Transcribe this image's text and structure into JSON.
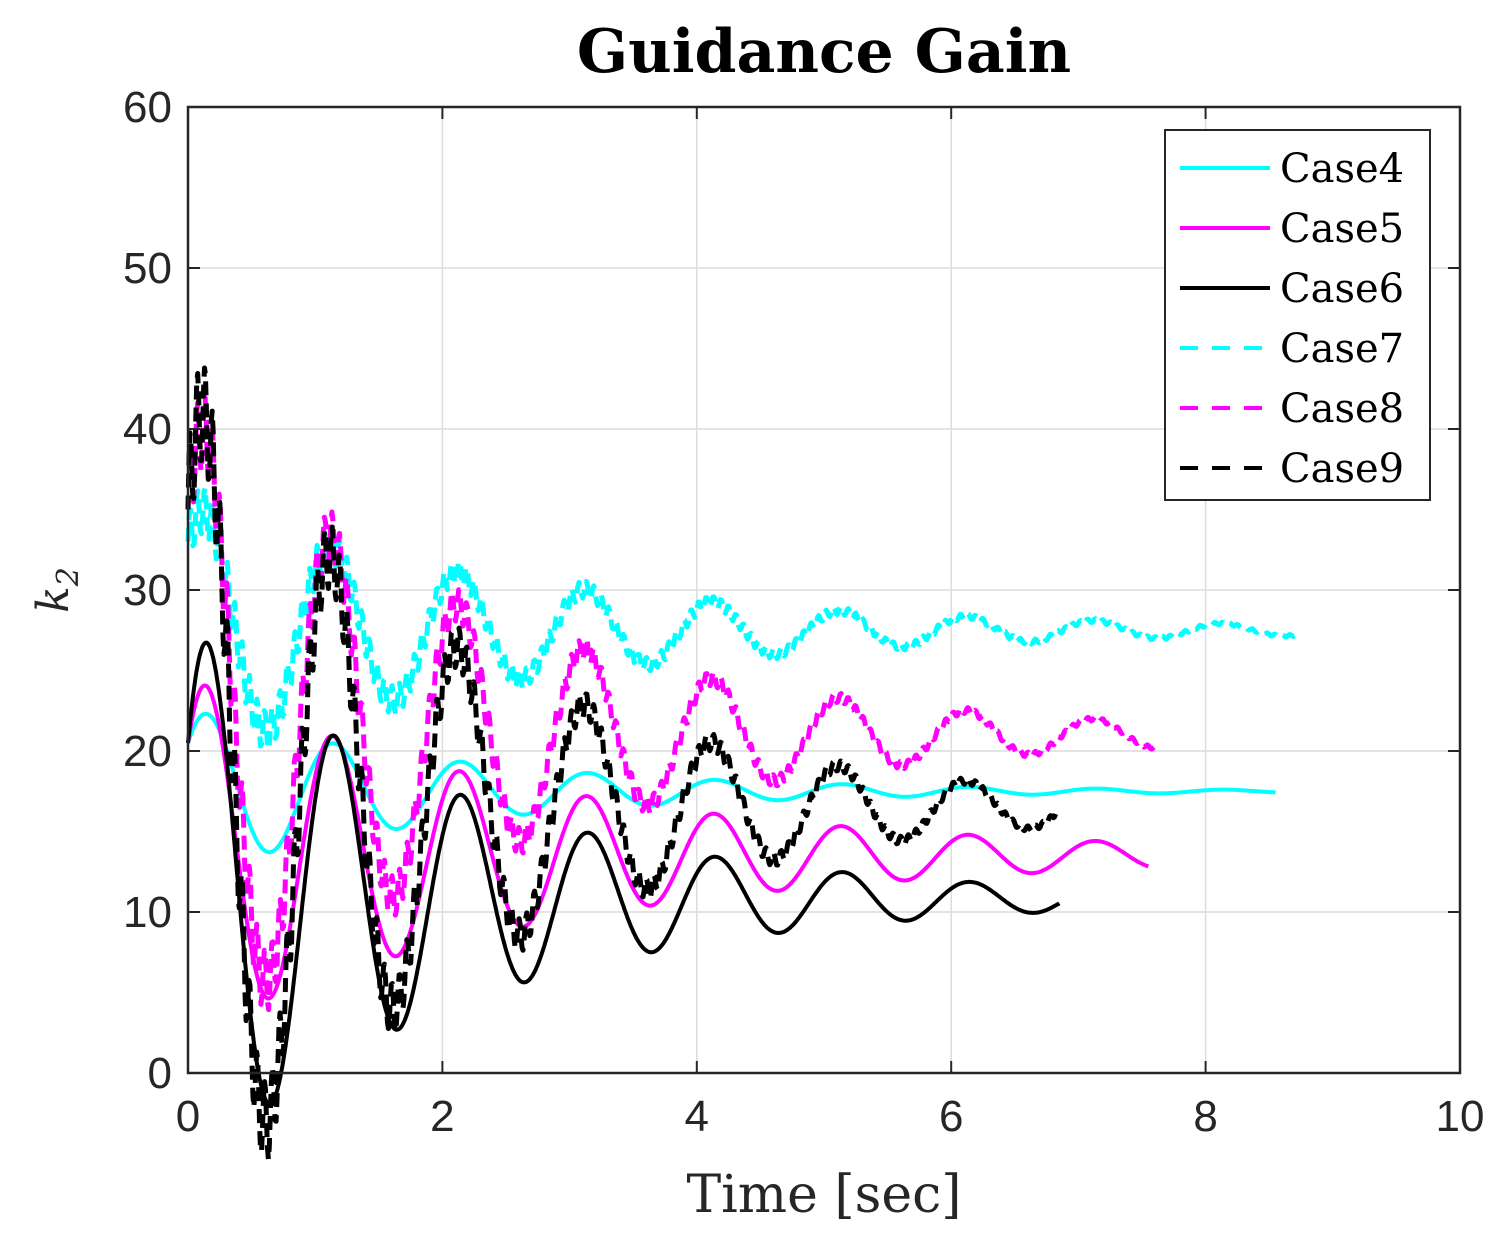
{
  "chart_data": {
    "type": "line",
    "title": "Guidance Gain",
    "xlabel": "Time [sec]",
    "ylabel_base": "k",
    "ylabel_sub": "2",
    "xlim": [
      0,
      10
    ],
    "ylim": [
      0,
      60
    ],
    "xticks": [
      0,
      2,
      4,
      6,
      8,
      10
    ],
    "yticks": [
      0,
      10,
      20,
      30,
      40,
      50,
      60
    ],
    "grid": true,
    "legend_position": "top-right",
    "series": [
      {
        "name": "Case4",
        "color": "#00FFFF",
        "style": "solid",
        "width": 4,
        "t_end": 8.55,
        "y0": 20.5,
        "final": 17.5,
        "amp": 4.2,
        "decay": 0.48,
        "noise": 0
      },
      {
        "name": "Case5",
        "color": "#FF00FF",
        "style": "solid",
        "width": 4,
        "t_end": 7.55,
        "y0": 20.5,
        "final": 13.5,
        "amp": 8.6,
        "decay": 0.35,
        "noise": 0
      },
      {
        "name": "Case6",
        "color": "#000000",
        "style": "solid",
        "width": 4,
        "t_end": 6.85,
        "y0": 20.5,
        "final": 10.8,
        "amp": 14.0,
        "decay": 0.45,
        "noise": 0
      },
      {
        "name": "Case7",
        "color": "#00FFFF",
        "style": "dashed",
        "width": 5,
        "t_end": 8.7,
        "y0": 33.0,
        "final": 27.5,
        "amp": 5.5,
        "decay": 0.36,
        "noise": 1.6
      },
      {
        "name": "Case8",
        "color": "#FF00FF",
        "style": "dashed",
        "width": 5,
        "t_end": 7.6,
        "y0": 35.0,
        "final": 21.0,
        "amp": 14.0,
        "decay": 0.42,
        "noise": 2.5
      },
      {
        "name": "Case9",
        "color": "#000000",
        "style": "dashed",
        "width": 5,
        "t_end": 6.85,
        "y0": 35.0,
        "final": 16.5,
        "amp": 18.0,
        "decay": 0.45,
        "noise": 3.3
      }
    ]
  }
}
